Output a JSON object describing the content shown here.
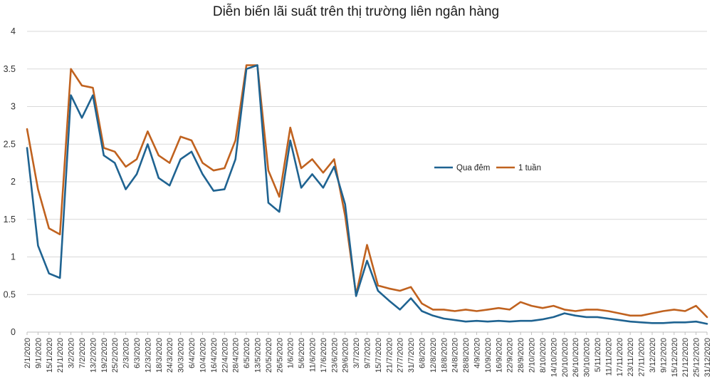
{
  "chart_data": {
    "type": "line",
    "title": "Diễn biến lãi suất trên thị trường liên ngân hàng",
    "xlabel": "",
    "ylabel": "",
    "ylim": [
      0,
      4
    ],
    "yticks": [
      "0",
      "0.5",
      "1",
      "1.5",
      "2",
      "2.5",
      "3",
      "3.5",
      "4"
    ],
    "grid": true,
    "legend_position": "center-right",
    "categories": [
      "2/1/2020",
      "9/1/2020",
      "15/1/2020",
      "21/1/2020",
      "3/2/2020",
      "7/2/2020",
      "13/2/2020",
      "19/2/2020",
      "25/2/2020",
      "2/3/2020",
      "6/3/2020",
      "12/3/2020",
      "18/3/2020",
      "24/3/2020",
      "30/3/2020",
      "6/4/2020",
      "10/4/2020",
      "16/4/2020",
      "22/4/2020",
      "28/4/2020",
      "6/5/2020",
      "13/5/2020",
      "20/5/2020",
      "26/5/2020",
      "1/6/2020",
      "5/6/2020",
      "11/6/2020",
      "17/6/2020",
      "23/6/2020",
      "29/6/2020",
      "3/7/2020",
      "9/7/2020",
      "15/7/2020",
      "21/7/2020",
      "27/7/2020",
      "31/7/2020",
      "6/8/2020",
      "12/8/2020",
      "18/8/2020",
      "24/8/2020",
      "28/8/2020",
      "4/9/2020",
      "10/9/2020",
      "16/9/2020",
      "22/9/2020",
      "28/9/2020",
      "2/10/2020",
      "8/10/2020",
      "14/10/2020",
      "20/10/2020",
      "26/10/2020",
      "30/10/2020",
      "5/11/2020",
      "11/11/2020",
      "17/11/2020",
      "23/11/2020",
      "27/11/2020",
      "3/12/2020",
      "9/12/2020",
      "15/12/2020",
      "21/12/2020",
      "25/12/2020",
      "31/12/2020"
    ],
    "series": [
      {
        "name": "Qua đêm",
        "color": "#1f6391",
        "values": [
          2.45,
          1.15,
          0.78,
          0.72,
          3.15,
          2.85,
          3.15,
          2.35,
          2.25,
          1.9,
          2.1,
          2.5,
          2.05,
          1.95,
          2.3,
          2.4,
          2.1,
          1.88,
          1.9,
          2.3,
          3.5,
          3.55,
          1.72,
          1.6,
          2.55,
          1.92,
          2.1,
          1.92,
          2.2,
          1.7,
          0.48,
          0.95,
          0.55,
          0.42,
          0.3,
          0.45,
          0.28,
          0.22,
          0.18,
          0.16,
          0.14,
          0.15,
          0.14,
          0.15,
          0.14,
          0.15,
          0.15,
          0.17,
          0.2,
          0.25,
          0.22,
          0.2,
          0.2,
          0.18,
          0.16,
          0.14,
          0.13,
          0.12,
          0.12,
          0.13,
          0.13,
          0.14,
          0.11
        ]
      },
      {
        "name": "1 tuần",
        "color": "#c0621f",
        "values": [
          2.7,
          1.9,
          1.38,
          1.3,
          3.5,
          3.28,
          3.25,
          2.45,
          2.4,
          2.2,
          2.3,
          2.67,
          2.35,
          2.25,
          2.6,
          2.55,
          2.25,
          2.15,
          2.18,
          2.55,
          3.55,
          3.55,
          2.15,
          1.8,
          2.72,
          2.18,
          2.3,
          2.12,
          2.3,
          1.55,
          0.5,
          1.16,
          0.62,
          0.58,
          0.55,
          0.6,
          0.38,
          0.3,
          0.3,
          0.28,
          0.3,
          0.28,
          0.3,
          0.32,
          0.3,
          0.4,
          0.35,
          0.32,
          0.35,
          0.3,
          0.28,
          0.3,
          0.3,
          0.28,
          0.25,
          0.22,
          0.22,
          0.25,
          0.28,
          0.3,
          0.28,
          0.35,
          0.2
        ]
      }
    ]
  }
}
